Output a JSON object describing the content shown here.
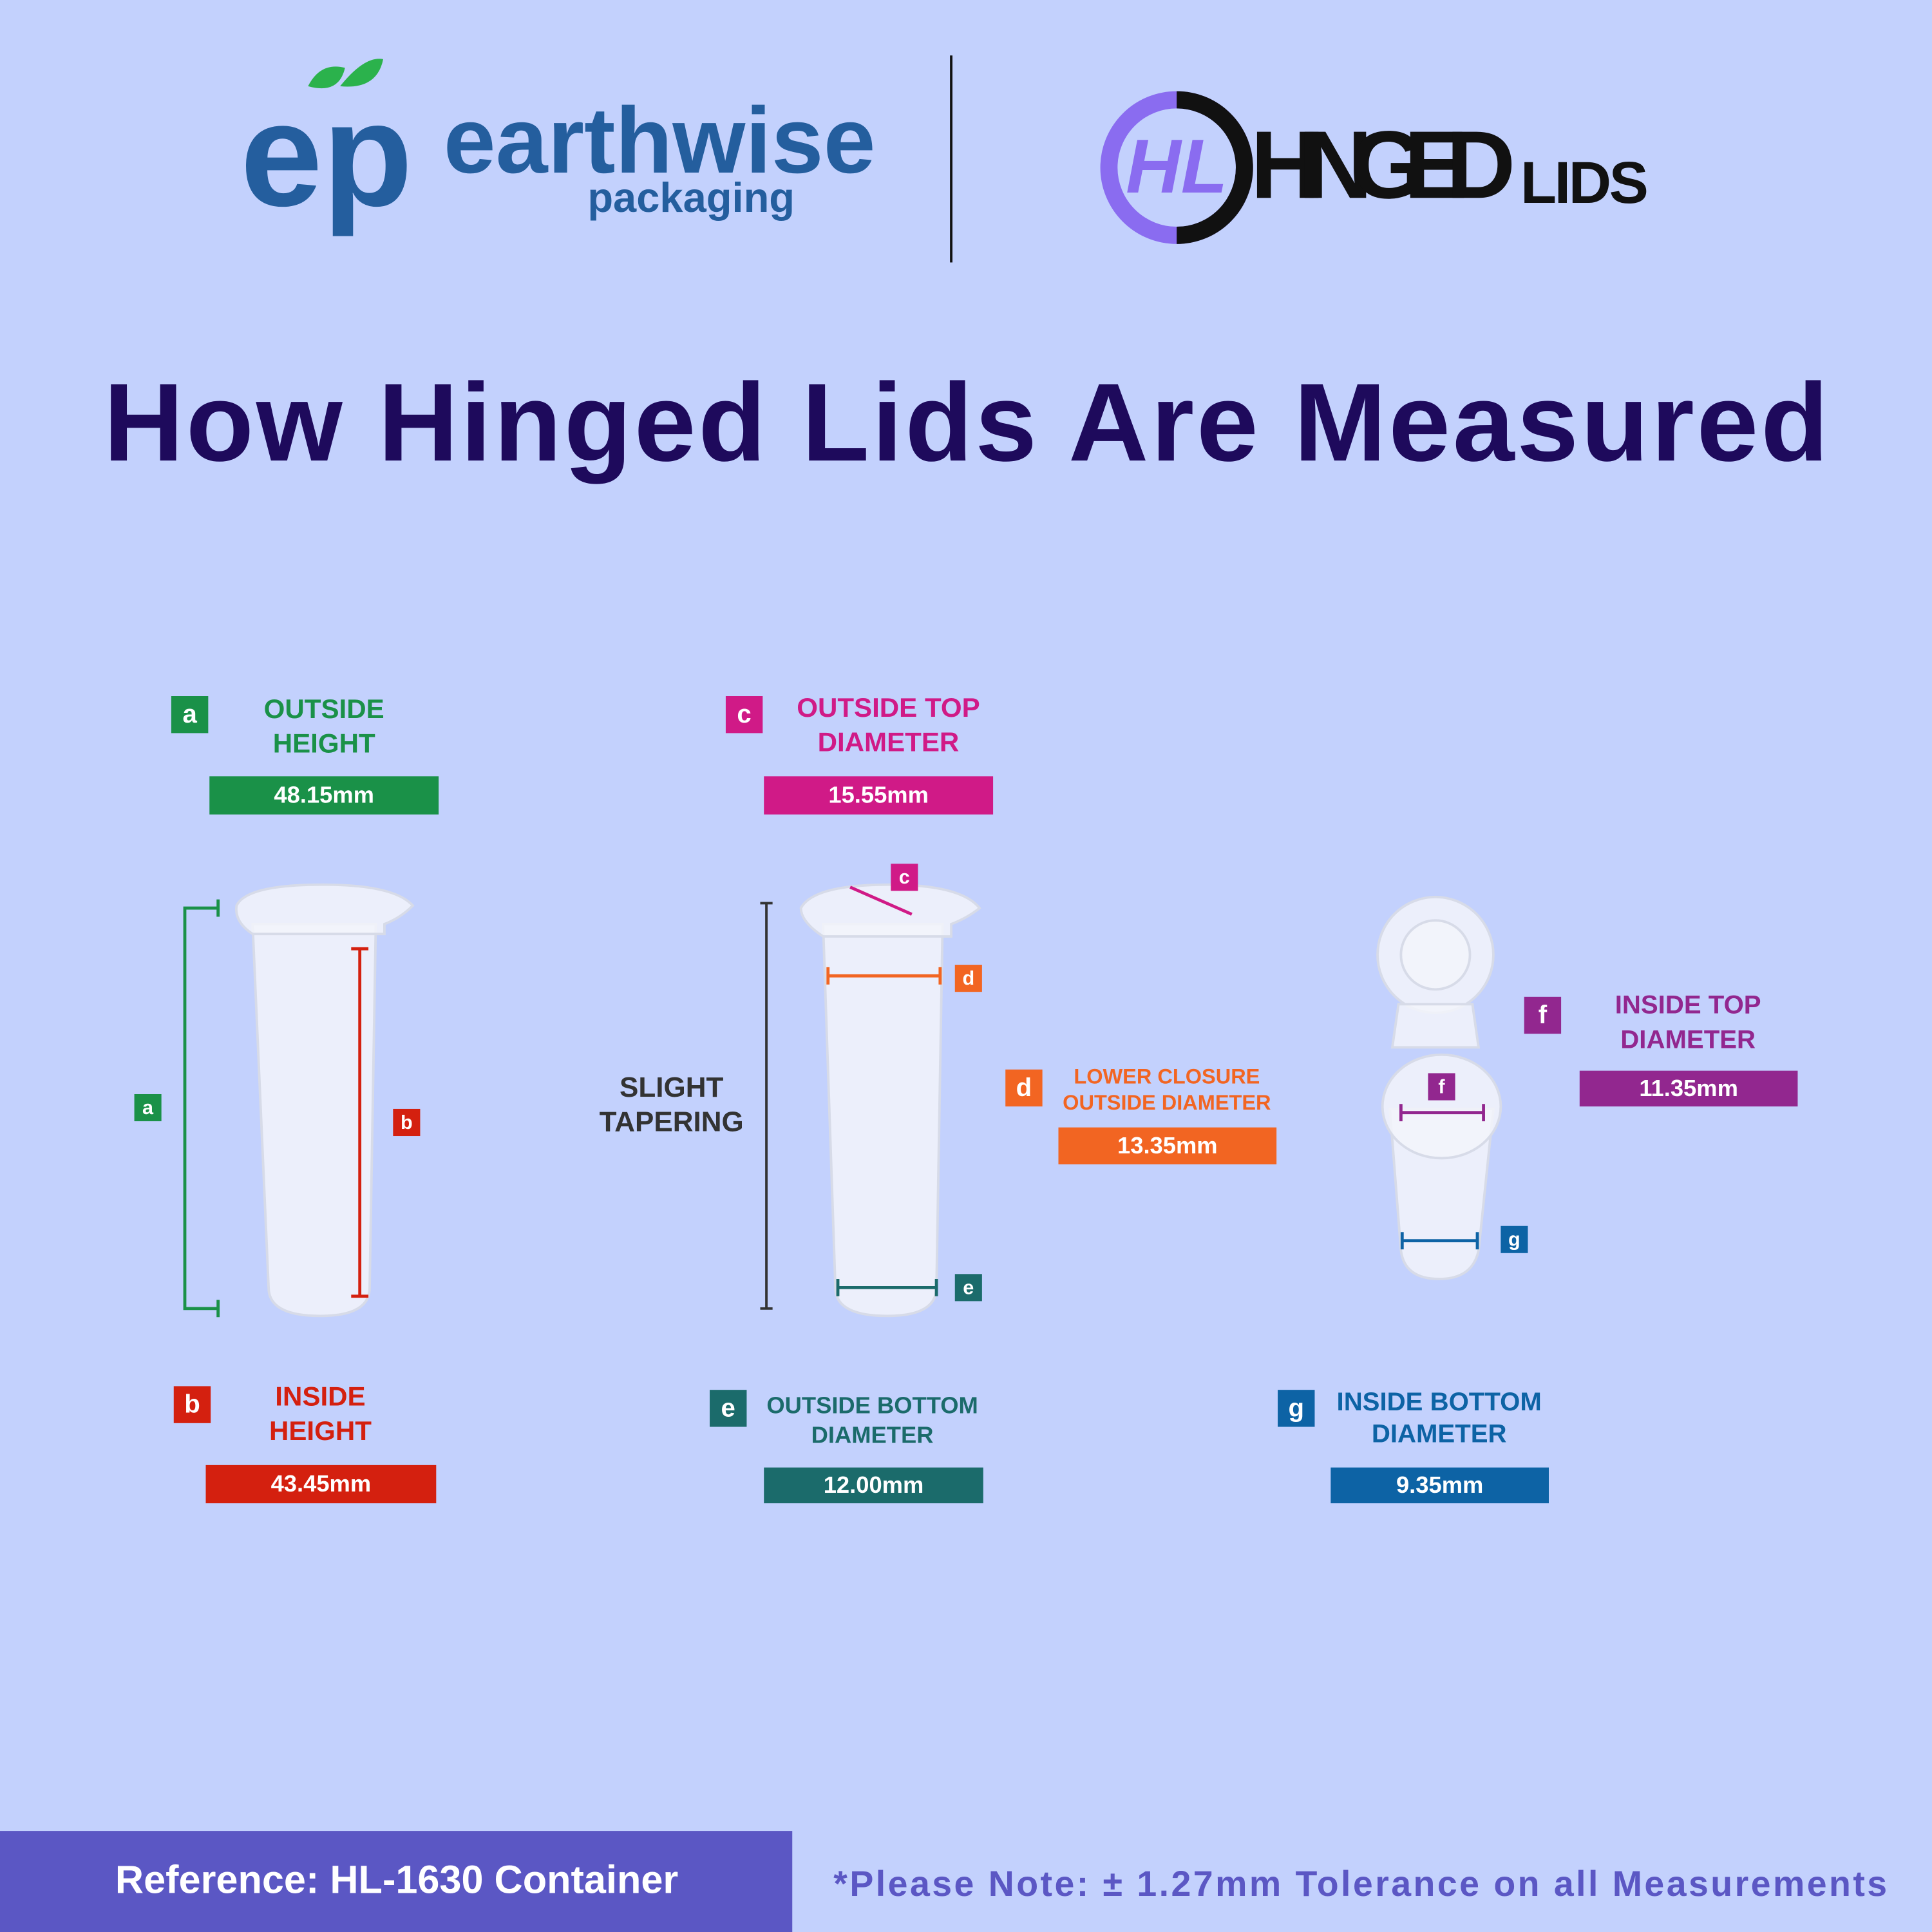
{
  "header": {
    "brand_left": {
      "logo": "ep",
      "name": "earthwise",
      "tagline": "packaging"
    },
    "brand_right": {
      "logo": "HL",
      "name": "HINGED",
      "suffix": "LIDS"
    }
  },
  "title": "How Hinged Lids Are Measured",
  "measurements": [
    {
      "letter": "a",
      "label_lines": [
        "OUTSIDE",
        "HEIGHT"
      ],
      "value": "48.15mm",
      "color": "#1a9148"
    },
    {
      "letter": "b",
      "label_lines": [
        "INSIDE",
        "HEIGHT"
      ],
      "value": "43.45mm",
      "color": "#d4200f"
    },
    {
      "letter": "c",
      "label_lines": [
        "OUTSIDE TOP",
        "DIAMETER"
      ],
      "value": "15.55mm",
      "color": "#d01a87"
    },
    {
      "letter": "d",
      "label_lines": [
        "LOWER CLOSURE",
        "OUTSIDE DIAMETER"
      ],
      "value": "13.35mm",
      "color": "#f26522"
    },
    {
      "letter": "e",
      "label_lines": [
        "OUTSIDE BOTTOM",
        "DIAMETER"
      ],
      "value": "12.00mm",
      "color": "#1b6b6b"
    },
    {
      "letter": "f",
      "label_lines": [
        "INSIDE TOP",
        "DIAMETER"
      ],
      "value": "11.35mm",
      "color": "#92278f"
    },
    {
      "letter": "g",
      "label_lines": [
        "INSIDE BOTTOM",
        "DIAMETER"
      ],
      "value": "9.35mm",
      "color": "#0d63a5"
    }
  ],
  "tapering_note": [
    "SLIGHT",
    "TAPERING"
  ],
  "footer": {
    "reference": "Reference: HL-1630 Container",
    "note": "*Please Note: ± 1.27mm Tolerance on all Measurements"
  }
}
